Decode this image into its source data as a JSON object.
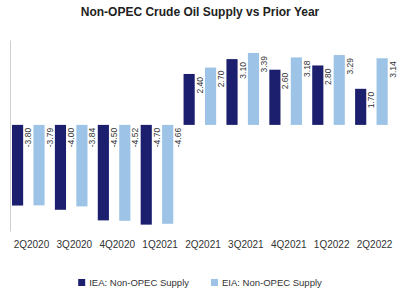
{
  "chart_data": {
    "type": "bar",
    "title": "Non-OPEC Crude Oil Supply vs Prior Year",
    "categories": [
      "2Q2020",
      "3Q2020",
      "4Q2020",
      "1Q2021",
      "2Q2021",
      "3Q2021",
      "4Q2021",
      "1Q2022",
      "2Q2022"
    ],
    "series": [
      {
        "name": "IEA: Non-OPEC Supply",
        "color": "#1b1f6e",
        "values": [
          -3.8,
          -4.0,
          -4.5,
          -4.7,
          2.4,
          3.1,
          2.6,
          2.8,
          1.7
        ],
        "value_labels": [
          "-3.80",
          "-4.00",
          "-4.50",
          "-4.70",
          "2.40",
          "3.10",
          "2.60",
          "2.80",
          "1.70"
        ]
      },
      {
        "name": "EIA: Non-OPEC Supply",
        "color": "#9dc3e6",
        "values": [
          -3.79,
          -3.84,
          -4.52,
          -4.66,
          2.7,
          3.39,
          3.18,
          3.29,
          3.14
        ],
        "value_labels": [
          "-3.79",
          "-3.84",
          "-4.52",
          "-4.66",
          "2.70",
          "3.39",
          "3.18",
          "3.29",
          "3.14"
        ]
      }
    ],
    "ylim": [
      -5,
      4
    ],
    "grid": false,
    "legend": "bottom",
    "data_labels": true,
    "tick_labels": "x"
  }
}
